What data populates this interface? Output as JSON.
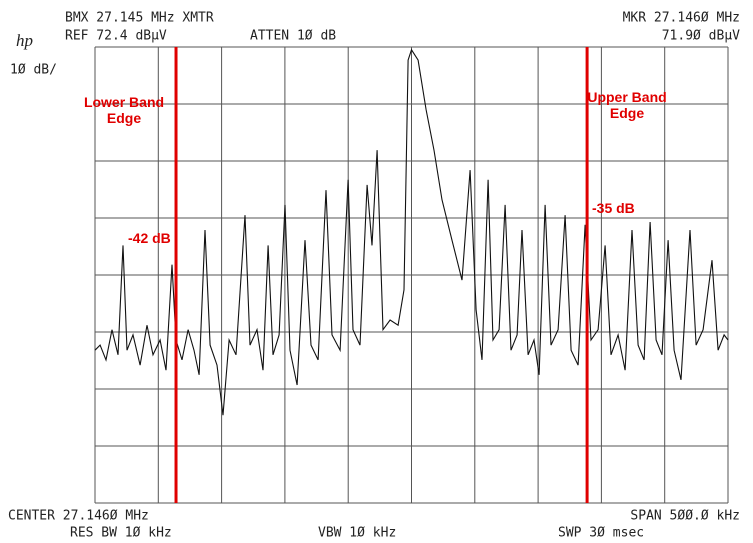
{
  "chart_data": {
    "type": "line",
    "title": "BMX 27.145 MHz XMTR",
    "labels": {
      "logo": "hp",
      "ref": "REF 72.4 dBµV",
      "atten": "ATTEN 1Ø dB",
      "marker_freq": "MKR 27.146Ø MHz",
      "marker_level": "71.9Ø dBµV",
      "scale": "1Ø dB/",
      "center": "CENTER 27.146Ø MHz",
      "span": "SPAN 5ØØ.Ø kHz",
      "rbw": "RES BW 1Ø kHz",
      "vbw": "VBW 1Ø kHz",
      "sweep": "SWP 3Ø msec"
    },
    "band_edges": [
      {
        "label": "Lower Band Edge",
        "x": 26.96
      },
      {
        "label": "Upper Band Edge",
        "x": 27.2847
      }
    ],
    "edge_color": "#e00000",
    "annotations": [
      "-42 dB",
      "-35 dB"
    ],
    "color": "#111111",
    "grid": true,
    "xlim": [
      26.896,
      27.396
    ],
    "xticks": [
      26.896,
      26.946,
      26.996,
      27.046,
      27.096,
      27.146,
      27.196,
      27.246,
      27.296,
      27.346,
      27.396
    ],
    "ylim": [
      -7.6,
      72.4
    ],
    "yticks": [
      72.4,
      62.4,
      52.4,
      42.4,
      32.4,
      22.4,
      12.4,
      2.4,
      -7.6
    ],
    "x": [
      26.896,
      26.9,
      26.9047,
      26.9094,
      26.9142,
      26.9181,
      26.9213,
      26.926,
      26.9316,
      26.9371,
      26.9418,
      26.9474,
      26.9521,
      26.9568,
      26.96,
      26.9647,
      26.9695,
      26.9742,
      26.9782,
      26.9829,
      26.9869,
      26.9924,
      26.9971,
      27.0019,
      27.0074,
      27.0145,
      27.0184,
      27.024,
      27.0287,
      27.0327,
      27.0366,
      27.0414,
      27.0461,
      27.05,
      27.0556,
      27.0619,
      27.0666,
      27.0722,
      27.0785,
      27.0832,
      27.0896,
      27.0959,
      27.0998,
      27.1053,
      27.1109,
      27.1148,
      27.1188,
      27.1235,
      27.1291,
      27.1354,
      27.1401,
      27.1433,
      27.146,
      27.1512,
      27.1575,
      27.1638,
      27.1701,
      27.178,
      27.1859,
      27.1923,
      27.197,
      27.2017,
      27.2065,
      27.2104,
      27.2152,
      27.2199,
      27.2246,
      27.2294,
      27.2333,
      27.2381,
      27.2428,
      27.2468,
      27.2515,
      27.2562,
      27.2618,
      27.2673,
      27.2721,
      27.2776,
      27.2831,
      27.2878,
      27.2934,
      27.2989,
      27.3036,
      27.3092,
      27.3147,
      27.3202,
      27.325,
      27.3297,
      27.3345,
      27.3392,
      27.3439,
      27.3487,
      27.3534,
      27.3589,
      27.366,
      27.3708,
      27.3763,
      27.3834,
      27.3882,
      27.3929,
      27.396
    ],
    "values": [
      19.2,
      20.1,
      17.5,
      22.8,
      18.4,
      37.6,
      19.2,
      21.9,
      16.6,
      23.6,
      18.4,
      21.0,
      15.7,
      34.2,
      21.0,
      17.5,
      22.8,
      19.2,
      14.9,
      40.3,
      20.1,
      16.6,
      7.8,
      21.0,
      18.4,
      42.9,
      20.1,
      22.8,
      15.7,
      37.6,
      18.4,
      21.9,
      44.7,
      19.2,
      13.1,
      38.5,
      20.1,
      17.5,
      47.3,
      21.9,
      19.2,
      49.1,
      22.8,
      20.1,
      48.2,
      37.6,
      54.3,
      22.8,
      24.5,
      23.6,
      29.8,
      70.1,
      71.9,
      70.1,
      61.4,
      54.3,
      45.6,
      38.5,
      31.5,
      50.8,
      26.3,
      17.5,
      49.1,
      21.0,
      22.8,
      44.7,
      19.2,
      21.9,
      40.3,
      18.4,
      21.0,
      14.9,
      44.7,
      20.1,
      22.8,
      42.9,
      19.2,
      16.6,
      41.2,
      21.0,
      22.8,
      37.6,
      18.4,
      21.9,
      15.7,
      40.3,
      20.1,
      17.5,
      41.7,
      21.0,
      18.4,
      38.5,
      19.2,
      14.0,
      40.3,
      20.1,
      22.8,
      35.0,
      19.2,
      21.9,
      21.0
    ]
  }
}
